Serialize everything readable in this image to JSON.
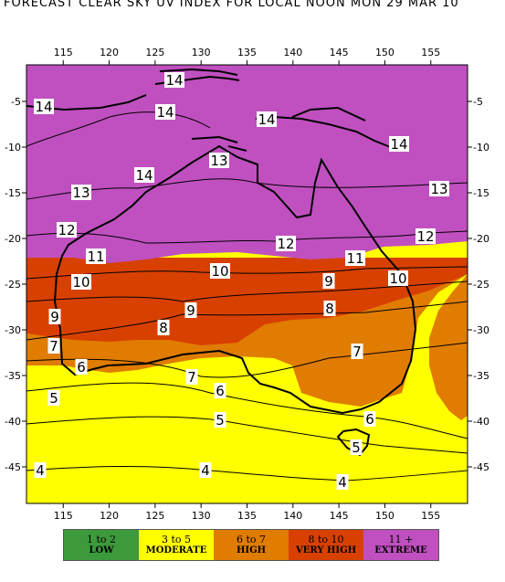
{
  "title": "FORECAST CLEAR SKY UV INDEX FOR LOCAL NOON MON 29 MAR 10",
  "axes": {
    "longitudes": [
      "115",
      "120",
      "125",
      "130",
      "135",
      "140",
      "145",
      "150",
      "155"
    ],
    "latitudes": [
      "-5",
      "-10",
      "-15",
      "-20",
      "-25",
      "-30",
      "-35",
      "-40",
      "-45"
    ]
  },
  "contour_labels": [
    "14",
    "14",
    "14",
    "14",
    "14",
    "14",
    "13",
    "13",
    "13",
    "12",
    "12",
    "12",
    "11",
    "11",
    "10",
    "10",
    "10",
    "9",
    "9",
    "9",
    "8",
    "8",
    "7",
    "7",
    "7",
    "6",
    "6",
    "6",
    "5",
    "5",
    "5",
    "4",
    "4",
    "4"
  ],
  "legend": [
    {
      "range": "1 to 2",
      "name": "LOW",
      "color": "#3c9a3c"
    },
    {
      "range": "3 to 5",
      "name": "MODERATE",
      "color": "#ffff00"
    },
    {
      "range": "6 to 7",
      "name": "HIGH",
      "color": "#e07c00"
    },
    {
      "range": "8 to 10",
      "name": "VERY HIGH",
      "color": "#d84000"
    },
    {
      "range": "11 +",
      "name": "EXTREME",
      "color": "#c050c0"
    }
  ]
}
